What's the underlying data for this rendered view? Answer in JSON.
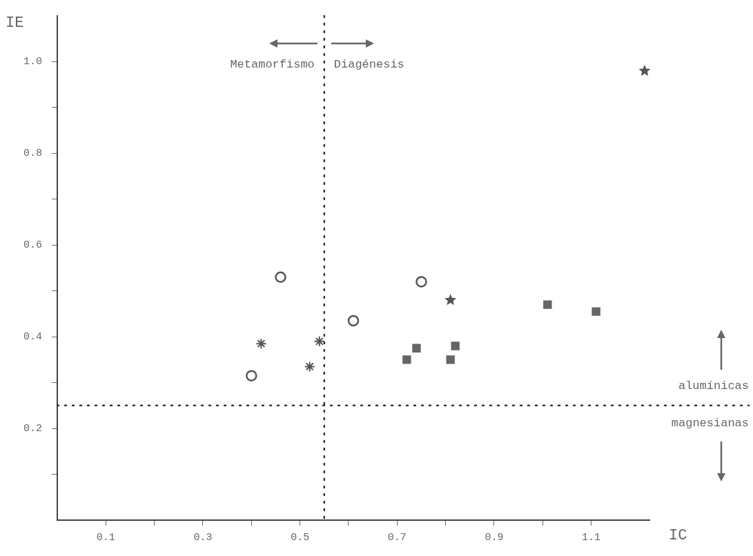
{
  "chart_data": {
    "type": "scatter",
    "xlabel": "IC",
    "ylabel": "IE",
    "xlim": [
      0,
      1.22
    ],
    "xticks": [
      {
        "value": 0.1,
        "label": "0.1"
      },
      {
        "value": 0.2,
        "label": null
      },
      {
        "value": 0.3,
        "label": "0.3"
      },
      {
        "value": 0.4,
        "label": null
      },
      {
        "value": 0.5,
        "label": "0.5"
      },
      {
        "value": 0.6,
        "label": null
      },
      {
        "value": 0.7,
        "label": "0.7"
      },
      {
        "value": 0.8,
        "label": null
      },
      {
        "value": 0.9,
        "label": "0.9"
      },
      {
        "value": 1.0,
        "label": null
      },
      {
        "value": 1.1,
        "label": "1.1"
      }
    ],
    "ylim": [
      0,
      1.1
    ],
    "yticks": [
      {
        "value": 0.1,
        "label": null
      },
      {
        "value": 0.2,
        "label": "0.2"
      },
      {
        "value": 0.3,
        "label": null
      },
      {
        "value": 0.4,
        "label": "0.4"
      },
      {
        "value": 0.5,
        "label": null
      },
      {
        "value": 0.6,
        "label": "0.6"
      },
      {
        "value": 0.7,
        "label": null
      },
      {
        "value": 0.8,
        "label": "0.8"
      },
      {
        "value": 0.9,
        "label": null
      },
      {
        "value": 1.0,
        "label": "1.0"
      }
    ],
    "grid": false,
    "legend": false,
    "series": [
      {
        "color": "#555555",
        "marker": "circle",
        "x": [
          0.46,
          0.61,
          0.75
        ],
        "values": [
          0.53,
          0.435,
          0.52
        ]
      },
      {
        "color": "#555555",
        "marker": "circle",
        "x": [
          0.4
        ],
        "values": [
          0.315
        ]
      },
      {
        "color": "#555555",
        "marker": "cross",
        "x": [
          0.42,
          0.54,
          0.52
        ],
        "values": [
          0.385,
          0.39,
          0.335
        ]
      },
      {
        "color": "#666666",
        "marker": "square",
        "x": [
          0.74,
          0.82,
          0.72,
          0.81,
          1.01,
          1.11
        ],
        "values": [
          0.375,
          0.38,
          0.35,
          0.35,
          0.47,
          0.455
        ]
      },
      {
        "color": "#555555",
        "marker": "star",
        "x": [
          0.81,
          1.21
        ],
        "values": [
          0.48,
          0.98
        ]
      }
    ],
    "ref_lines": [
      {
        "axis": "x",
        "value": 0.55,
        "line_style": "dotted",
        "color": "#333333"
      },
      {
        "axis": "y",
        "value": 0.25,
        "line_style": "dotted",
        "color": "#333333"
      }
    ],
    "annotations": [
      "Metamorfismo",
      "Diagénesis",
      "alumínicas",
      "magnesianas"
    ]
  }
}
